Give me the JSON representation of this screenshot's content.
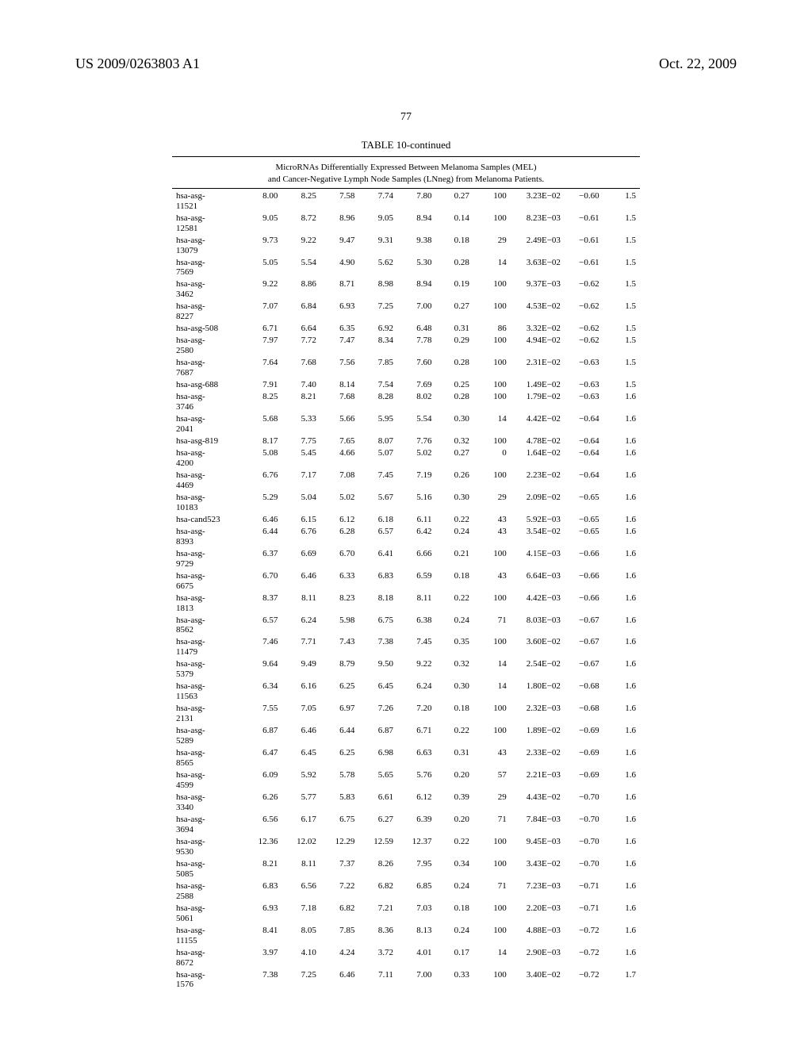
{
  "header": {
    "patent_number": "US 2009/0263803 A1",
    "date": "Oct. 22, 2009"
  },
  "page_number": "77",
  "table": {
    "title": "TABLE 10-continued",
    "subtitle_line1": "MicroRNAs Differentially Expressed Between Melanoma Samples (MEL)",
    "subtitle_line2": "and Cancer-Negative Lymph Node Samples (LNneg) from Melanoma Patients.",
    "rows": [
      {
        "id": "hsa-asg-11521",
        "c1": "8.00",
        "c2": "8.25",
        "c3": "7.58",
        "c4": "7.74",
        "c5": "7.80",
        "c6": "0.27",
        "c7": "100",
        "c8": "3.23E−02",
        "c9": "−0.60",
        "c10": "1.5"
      },
      {
        "id": "hsa-asg-12581",
        "c1": "9.05",
        "c2": "8.72",
        "c3": "8.96",
        "c4": "9.05",
        "c5": "8.94",
        "c6": "0.14",
        "c7": "100",
        "c8": "8.23E−03",
        "c9": "−0.61",
        "c10": "1.5"
      },
      {
        "id": "hsa-asg-13079",
        "c1": "9.73",
        "c2": "9.22",
        "c3": "9.47",
        "c4": "9.31",
        "c5": "9.38",
        "c6": "0.18",
        "c7": "29",
        "c8": "2.49E−03",
        "c9": "−0.61",
        "c10": "1.5"
      },
      {
        "id": "hsa-asg-7569",
        "c1": "5.05",
        "c2": "5.54",
        "c3": "4.90",
        "c4": "5.62",
        "c5": "5.30",
        "c6": "0.28",
        "c7": "14",
        "c8": "3.63E−02",
        "c9": "−0.61",
        "c10": "1.5"
      },
      {
        "id": "hsa-asg-3462",
        "c1": "9.22",
        "c2": "8.86",
        "c3": "8.71",
        "c4": "8.98",
        "c5": "8.94",
        "c6": "0.19",
        "c7": "100",
        "c8": "9.37E−03",
        "c9": "−0.62",
        "c10": "1.5"
      },
      {
        "id": "hsa-asg-8227",
        "c1": "7.07",
        "c2": "6.84",
        "c3": "6.93",
        "c4": "7.25",
        "c5": "7.00",
        "c6": "0.27",
        "c7": "100",
        "c8": "4.53E−02",
        "c9": "−0.62",
        "c10": "1.5"
      },
      {
        "id": "hsa-asg-508",
        "c1": "6.71",
        "c2": "6.64",
        "c3": "6.35",
        "c4": "6.92",
        "c5": "6.48",
        "c6": "0.31",
        "c7": "86",
        "c8": "3.32E−02",
        "c9": "−0.62",
        "c10": "1.5"
      },
      {
        "id": "hsa-asg-2580",
        "c1": "7.97",
        "c2": "7.72",
        "c3": "7.47",
        "c4": "8.34",
        "c5": "7.78",
        "c6": "0.29",
        "c7": "100",
        "c8": "4.94E−02",
        "c9": "−0.62",
        "c10": "1.5"
      },
      {
        "id": "hsa-asg-7687",
        "c1": "7.64",
        "c2": "7.68",
        "c3": "7.56",
        "c4": "7.85",
        "c5": "7.60",
        "c6": "0.28",
        "c7": "100",
        "c8": "2.31E−02",
        "c9": "−0.63",
        "c10": "1.5"
      },
      {
        "id": "hsa-asg-688",
        "c1": "7.91",
        "c2": "7.40",
        "c3": "8.14",
        "c4": "7.54",
        "c5": "7.69",
        "c6": "0.25",
        "c7": "100",
        "c8": "1.49E−02",
        "c9": "−0.63",
        "c10": "1.5"
      },
      {
        "id": "hsa-asg-3746",
        "c1": "8.25",
        "c2": "8.21",
        "c3": "7.68",
        "c4": "8.28",
        "c5": "8.02",
        "c6": "0.28",
        "c7": "100",
        "c8": "1.79E−02",
        "c9": "−0.63",
        "c10": "1.6"
      },
      {
        "id": "hsa-asg-2041",
        "c1": "5.68",
        "c2": "5.33",
        "c3": "5.66",
        "c4": "5.95",
        "c5": "5.54",
        "c6": "0.30",
        "c7": "14",
        "c8": "4.42E−02",
        "c9": "−0.64",
        "c10": "1.6"
      },
      {
        "id": "hsa-asg-819",
        "c1": "8.17",
        "c2": "7.75",
        "c3": "7.65",
        "c4": "8.07",
        "c5": "7.76",
        "c6": "0.32",
        "c7": "100",
        "c8": "4.78E−02",
        "c9": "−0.64",
        "c10": "1.6"
      },
      {
        "id": "hsa-asg-4200",
        "c1": "5.08",
        "c2": "5.45",
        "c3": "4.66",
        "c4": "5.07",
        "c5": "5.02",
        "c6": "0.27",
        "c7": "0",
        "c8": "1.64E−02",
        "c9": "−0.64",
        "c10": "1.6"
      },
      {
        "id": "hsa-asg-4469",
        "c1": "6.76",
        "c2": "7.17",
        "c3": "7.08",
        "c4": "7.45",
        "c5": "7.19",
        "c6": "0.26",
        "c7": "100",
        "c8": "2.23E−02",
        "c9": "−0.64",
        "c10": "1.6"
      },
      {
        "id": "hsa-asg-10183",
        "c1": "5.29",
        "c2": "5.04",
        "c3": "5.02",
        "c4": "5.67",
        "c5": "5.16",
        "c6": "0.30",
        "c7": "29",
        "c8": "2.09E−02",
        "c9": "−0.65",
        "c10": "1.6"
      },
      {
        "id": "hsa-cand523",
        "c1": "6.46",
        "c2": "6.15",
        "c3": "6.12",
        "c4": "6.18",
        "c5": "6.11",
        "c6": "0.22",
        "c7": "43",
        "c8": "5.92E−03",
        "c9": "−0.65",
        "c10": "1.6"
      },
      {
        "id": "hsa-asg-8393",
        "c1": "6.44",
        "c2": "6.76",
        "c3": "6.28",
        "c4": "6.57",
        "c5": "6.42",
        "c6": "0.24",
        "c7": "43",
        "c8": "3.54E−02",
        "c9": "−0.65",
        "c10": "1.6"
      },
      {
        "id": "hsa-asg-9729",
        "c1": "6.37",
        "c2": "6.69",
        "c3": "6.70",
        "c4": "6.41",
        "c5": "6.66",
        "c6": "0.21",
        "c7": "100",
        "c8": "4.15E−03",
        "c9": "−0.66",
        "c10": "1.6"
      },
      {
        "id": "hsa-asg-6675",
        "c1": "6.70",
        "c2": "6.46",
        "c3": "6.33",
        "c4": "6.83",
        "c5": "6.59",
        "c6": "0.18",
        "c7": "43",
        "c8": "6.64E−03",
        "c9": "−0.66",
        "c10": "1.6"
      },
      {
        "id": "hsa-asg-1813",
        "c1": "8.37",
        "c2": "8.11",
        "c3": "8.23",
        "c4": "8.18",
        "c5": "8.11",
        "c6": "0.22",
        "c7": "100",
        "c8": "4.42E−03",
        "c9": "−0.66",
        "c10": "1.6"
      },
      {
        "id": "hsa-asg-8562",
        "c1": "6.57",
        "c2": "6.24",
        "c3": "5.98",
        "c4": "6.75",
        "c5": "6.38",
        "c6": "0.24",
        "c7": "71",
        "c8": "8.03E−03",
        "c9": "−0.67",
        "c10": "1.6"
      },
      {
        "id": "hsa-asg-11479",
        "c1": "7.46",
        "c2": "7.71",
        "c3": "7.43",
        "c4": "7.38",
        "c5": "7.45",
        "c6": "0.35",
        "c7": "100",
        "c8": "3.60E−02",
        "c9": "−0.67",
        "c10": "1.6"
      },
      {
        "id": "hsa-asg-5379",
        "c1": "9.64",
        "c2": "9.49",
        "c3": "8.79",
        "c4": "9.50",
        "c5": "9.22",
        "c6": "0.32",
        "c7": "14",
        "c8": "2.54E−02",
        "c9": "−0.67",
        "c10": "1.6"
      },
      {
        "id": "hsa-asg-11563",
        "c1": "6.34",
        "c2": "6.16",
        "c3": "6.25",
        "c4": "6.45",
        "c5": "6.24",
        "c6": "0.30",
        "c7": "14",
        "c8": "1.80E−02",
        "c9": "−0.68",
        "c10": "1.6"
      },
      {
        "id": "hsa-asg-2131",
        "c1": "7.55",
        "c2": "7.05",
        "c3": "6.97",
        "c4": "7.26",
        "c5": "7.20",
        "c6": "0.18",
        "c7": "100",
        "c8": "2.32E−03",
        "c9": "−0.68",
        "c10": "1.6"
      },
      {
        "id": "hsa-asg-5289",
        "c1": "6.87",
        "c2": "6.46",
        "c3": "6.44",
        "c4": "6.87",
        "c5": "6.71",
        "c6": "0.22",
        "c7": "100",
        "c8": "1.89E−02",
        "c9": "−0.69",
        "c10": "1.6"
      },
      {
        "id": "hsa-asg-8565",
        "c1": "6.47",
        "c2": "6.45",
        "c3": "6.25",
        "c4": "6.98",
        "c5": "6.63",
        "c6": "0.31",
        "c7": "43",
        "c8": "2.33E−02",
        "c9": "−0.69",
        "c10": "1.6"
      },
      {
        "id": "hsa-asg-4599",
        "c1": "6.09",
        "c2": "5.92",
        "c3": "5.78",
        "c4": "5.65",
        "c5": "5.76",
        "c6": "0.20",
        "c7": "57",
        "c8": "2.21E−03",
        "c9": "−0.69",
        "c10": "1.6"
      },
      {
        "id": "hsa-asg-3340",
        "c1": "6.26",
        "c2": "5.77",
        "c3": "5.83",
        "c4": "6.61",
        "c5": "6.12",
        "c6": "0.39",
        "c7": "29",
        "c8": "4.43E−02",
        "c9": "−0.70",
        "c10": "1.6"
      },
      {
        "id": "hsa-asg-3694",
        "c1": "6.56",
        "c2": "6.17",
        "c3": "6.75",
        "c4": "6.27",
        "c5": "6.39",
        "c6": "0.20",
        "c7": "71",
        "c8": "7.84E−03",
        "c9": "−0.70",
        "c10": "1.6"
      },
      {
        "id": "hsa-asg-9530",
        "c1": "12.36",
        "c2": "12.02",
        "c3": "12.29",
        "c4": "12.59",
        "c5": "12.37",
        "c6": "0.22",
        "c7": "100",
        "c8": "9.45E−03",
        "c9": "−0.70",
        "c10": "1.6"
      },
      {
        "id": "hsa-asg-5085",
        "c1": "8.21",
        "c2": "8.11",
        "c3": "7.37",
        "c4": "8.26",
        "c5": "7.95",
        "c6": "0.34",
        "c7": "100",
        "c8": "3.43E−02",
        "c9": "−0.70",
        "c10": "1.6"
      },
      {
        "id": "hsa-asg-2588",
        "c1": "6.83",
        "c2": "6.56",
        "c3": "7.22",
        "c4": "6.82",
        "c5": "6.85",
        "c6": "0.24",
        "c7": "71",
        "c8": "7.23E−03",
        "c9": "−0.71",
        "c10": "1.6"
      },
      {
        "id": "hsa-asg-5061",
        "c1": "6.93",
        "c2": "7.18",
        "c3": "6.82",
        "c4": "7.21",
        "c5": "7.03",
        "c6": "0.18",
        "c7": "100",
        "c8": "2.20E−03",
        "c9": "−0.71",
        "c10": "1.6"
      },
      {
        "id": "hsa-asg-11155",
        "c1": "8.41",
        "c2": "8.05",
        "c3": "7.85",
        "c4": "8.36",
        "c5": "8.13",
        "c6": "0.24",
        "c7": "100",
        "c8": "4.88E−03",
        "c9": "−0.72",
        "c10": "1.6"
      },
      {
        "id": "hsa-asg-8672",
        "c1": "3.97",
        "c2": "4.10",
        "c3": "4.24",
        "c4": "3.72",
        "c5": "4.01",
        "c6": "0.17",
        "c7": "14",
        "c8": "2.90E−03",
        "c9": "−0.72",
        "c10": "1.6"
      },
      {
        "id": "hsa-asg-1576",
        "c1": "7.38",
        "c2": "7.25",
        "c3": "6.46",
        "c4": "7.11",
        "c5": "7.00",
        "c6": "0.33",
        "c7": "100",
        "c8": "3.40E−02",
        "c9": "−0.72",
        "c10": "1.7"
      }
    ]
  }
}
